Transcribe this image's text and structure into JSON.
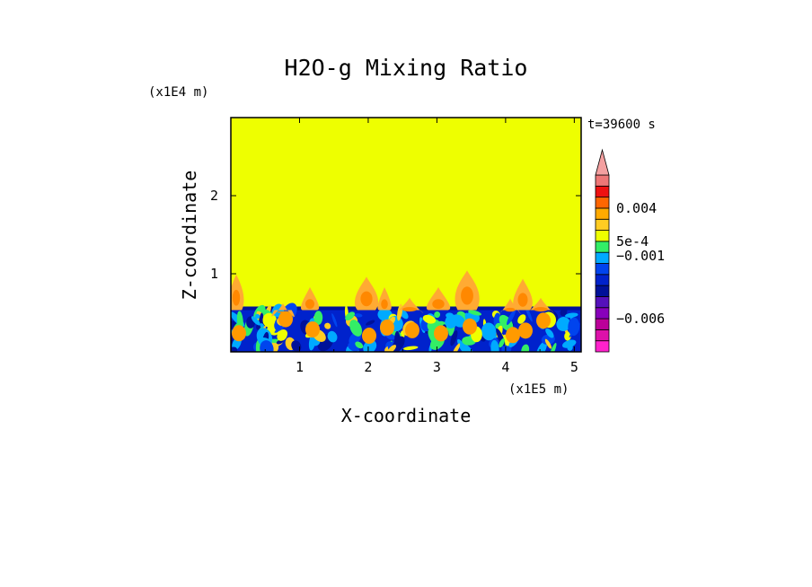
{
  "chart_data": {
    "type": "heatmap",
    "title": "H2O-g Mixing Ratio",
    "xlabel": "X-coordinate",
    "ylabel": "Z-coordinate",
    "x_scale_label": "(x1E5 m)",
    "y_scale_label": "(x1E4 m)",
    "time_label": "t=39600 s",
    "xlim": [
      0,
      5.1
    ],
    "ylim": [
      0,
      3.0
    ],
    "xticks": [
      1,
      2,
      3,
      4,
      5
    ],
    "yticks": [
      1,
      2
    ],
    "background_value_color": "#eeff00",
    "moist_layer_top": 0.58,
    "plume_top": 1.05,
    "colorbar": {
      "levels": [
        "-0.009",
        "-0.008",
        "-0.007",
        "-0.006",
        "-0.005",
        "-0.004",
        "-0.003",
        "-0.002",
        "-0.001",
        "0",
        "5e-4",
        "0.001",
        "0.002",
        "0.004",
        "0.006",
        "0.008",
        "0.01"
      ],
      "colors": [
        "#ff22cc",
        "#dd11aa",
        "#bb0099",
        "#8800bb",
        "#5511bb",
        "#001199",
        "#0022cc",
        "#0044ee",
        "#00aaff",
        "#33ee66",
        "#eeff00",
        "#ffcc22",
        "#ffaa00",
        "#ff6600",
        "#ee1111",
        "#ee7777"
      ],
      "extend_top_color": "#f4a0a0",
      "labels": [
        {
          "text": "0.004",
          "level_index": 13
        },
        {
          "text": "5e-4",
          "level_index": 10
        },
        {
          "text": "−0.001",
          "level_index": 8.7
        },
        {
          "text": "−0.006",
          "level_index": 3
        }
      ]
    }
  }
}
